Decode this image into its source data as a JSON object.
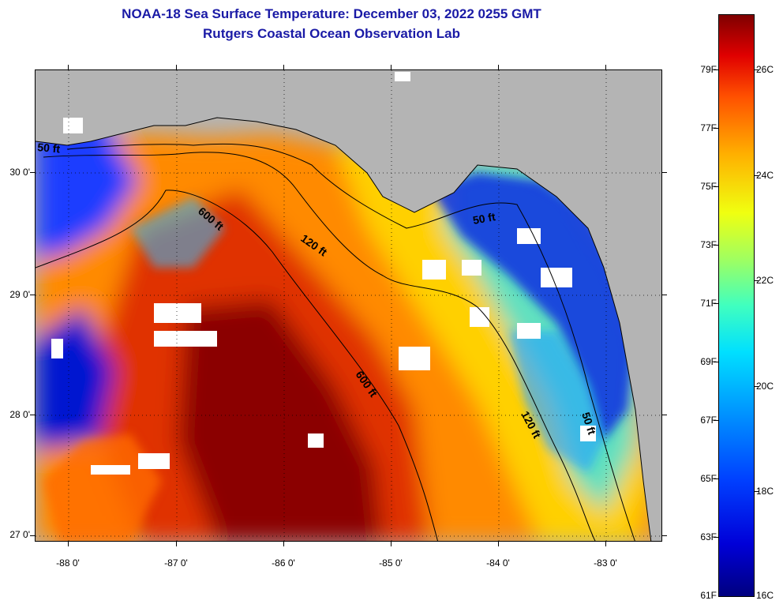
{
  "header": {
    "title_line1": "NOAA-18 Sea Surface Temperature:  December 03, 2022 0255 GMT",
    "title_line2": "Rutgers Coastal Ocean Observation Lab"
  },
  "map": {
    "lat_labels": [
      "30 0'",
      "29 0'",
      "28 0'",
      "27 0'"
    ],
    "lon_labels": [
      "-88 0'",
      "-87 0'",
      "-86 0'",
      "-85 0'",
      "-84 0'",
      "-83 0'"
    ],
    "contour_labels": [
      "600 ft",
      "120 ft",
      "50 ft",
      "600 ft",
      "120 ft",
      "50 ft",
      "50 ft"
    ],
    "colors": {
      "land": "#b4b4b4",
      "cloud": "#ffffff",
      "warm": "#8b0000",
      "cold": "#0000c0"
    }
  },
  "colorbar": {
    "f_labels": [
      "79F",
      "77F",
      "75F",
      "73F",
      "71F",
      "69F",
      "67F",
      "65F",
      "63F",
      "61F"
    ],
    "c_labels": [
      "26C",
      "24C",
      "22C",
      "20C",
      "18C",
      "16C"
    ]
  }
}
